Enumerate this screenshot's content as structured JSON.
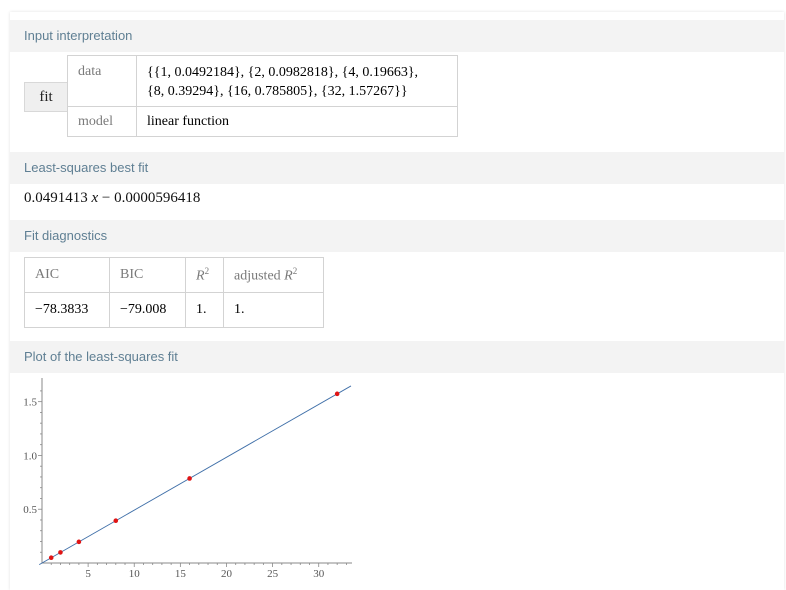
{
  "pods": {
    "input_interpretation": {
      "title": "Input interpretation",
      "fit_label": "fit",
      "data_label": "data",
      "data_line1": "{{1, 0.0492184}, {2, 0.0982818}, {4, 0.19663},",
      "data_line2": "{8, 0.39294}, {16, 0.785805}, {32, 1.57267}}",
      "model_label": "model",
      "model_value": "linear function"
    },
    "best_fit": {
      "title": "Least-squares best fit",
      "coef": "0.0491413",
      "var": "x",
      "rest": "− 0.0000596418"
    },
    "diagnostics": {
      "title": "Fit diagnostics",
      "aic_label": "AIC",
      "bic_label": "BIC",
      "r2_label": "R",
      "adj_label": "adjusted",
      "adj_r": "R",
      "sq": "2",
      "aic_value": "−78.3833",
      "bic_value": "−79.008",
      "r2_value": "1.",
      "adj_value": "1."
    },
    "plot": {
      "title": "Plot of the least-squares fit"
    }
  },
  "chart_data": {
    "type": "scatter",
    "x": [
      1,
      2,
      4,
      8,
      16,
      32
    ],
    "y": [
      0.0492184,
      0.0982818,
      0.19663,
      0.39294,
      0.785805,
      1.57267
    ],
    "fit_line": {
      "slope": 0.0491413,
      "intercept": -5.96418e-05
    },
    "x_ticks": [
      5,
      10,
      15,
      20,
      25,
      30
    ],
    "y_ticks": [
      0.5,
      1.0,
      1.5
    ],
    "xlim": [
      0,
      33.5
    ],
    "ylim": [
      0,
      1.72
    ],
    "colors": {
      "points": "#e01414",
      "line": "#3f6fa8",
      "axis": "#888888"
    }
  }
}
